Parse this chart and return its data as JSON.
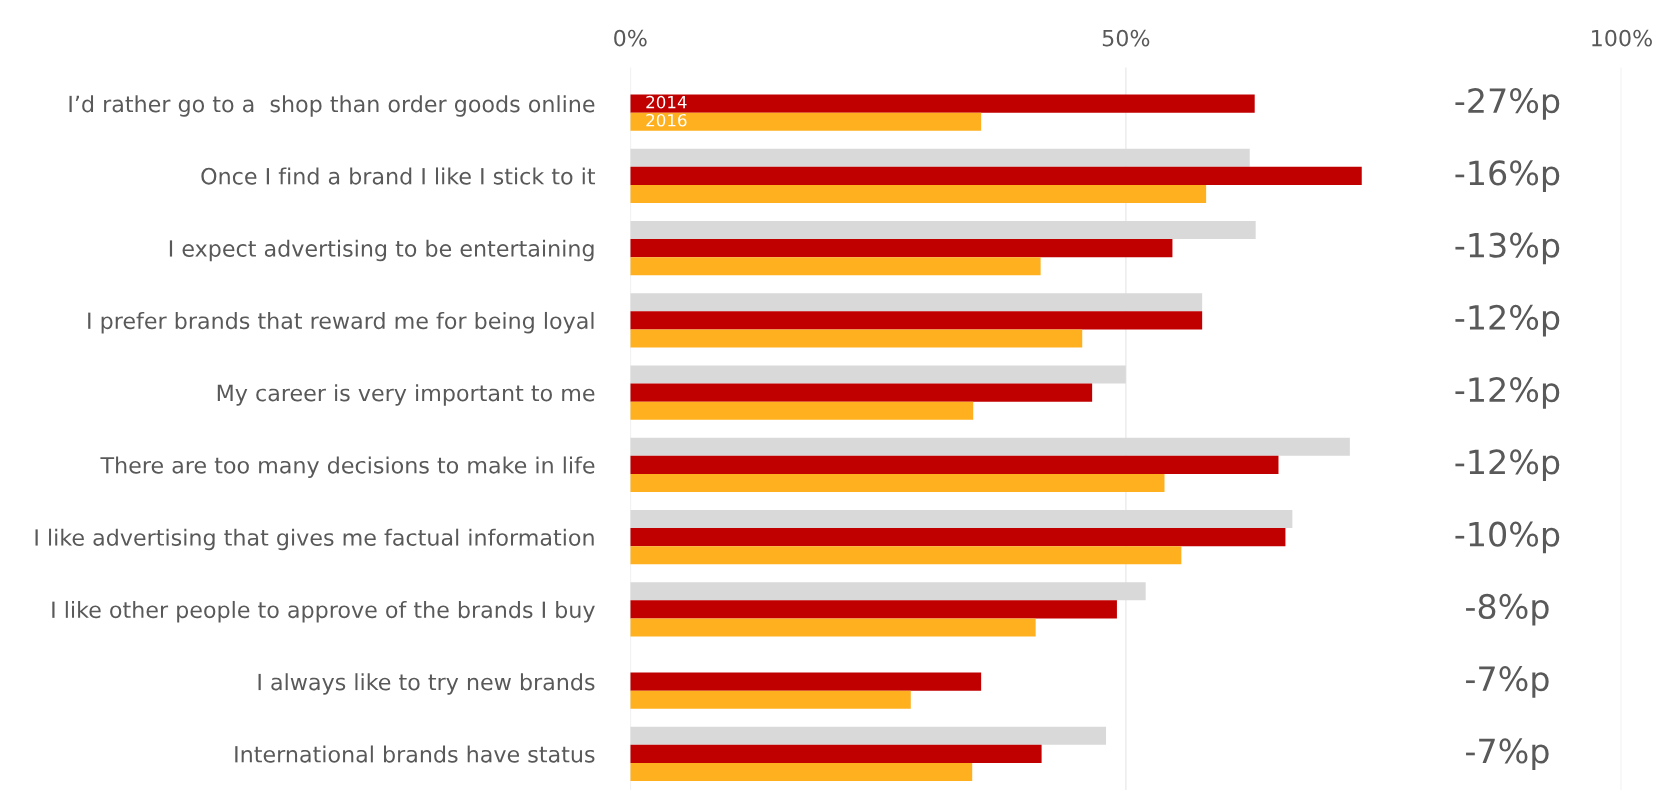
{
  "chart_data": {
    "type": "bar",
    "orientation": "horizontal",
    "categories": [
      "I’d rather go to a  shop than order goods online",
      "Once I find a brand I like I stick to it",
      "I expect advertising to be entertaining",
      "I prefer brands that reward me for being loyal",
      "My career is very important to me",
      "There are too many decisions to make in life",
      "I like advertising that gives me factual information",
      "I like other people to approve of the brands I buy",
      "I always like to try new brands",
      "International brands have status"
    ],
    "series": [
      {
        "color": "#d9d9d9",
        "values": [
          null,
          62.5,
          63.1,
          57.7,
          50.0,
          72.6,
          66.8,
          52.0,
          null,
          48.0
        ]
      },
      {
        "name": "2014",
        "color": "#c00000",
        "values": [
          63.0,
          73.8,
          54.7,
          57.7,
          46.6,
          65.4,
          66.1,
          49.1,
          35.4,
          41.5
        ]
      },
      {
        "name": "2016",
        "color": "#ffb01f",
        "values": [
          35.4,
          58.1,
          41.4,
          45.6,
          34.6,
          53.9,
          55.6,
          40.9,
          28.3,
          34.5
        ]
      }
    ],
    "xlim": [
      0,
      100
    ],
    "xticks": [
      {
        "value": 0,
        "label": "0%"
      },
      {
        "value": 50,
        "label": "50%"
      },
      {
        "value": 100,
        "label": "100%"
      }
    ],
    "grid": "x",
    "legend": false,
    "annotations": [
      "-27%p",
      "-16%p",
      "-13%p",
      "-12%p",
      "-12%p",
      "-12%p",
      "-10%p",
      "-8%p",
      "-7%p",
      "-7%p"
    ]
  }
}
